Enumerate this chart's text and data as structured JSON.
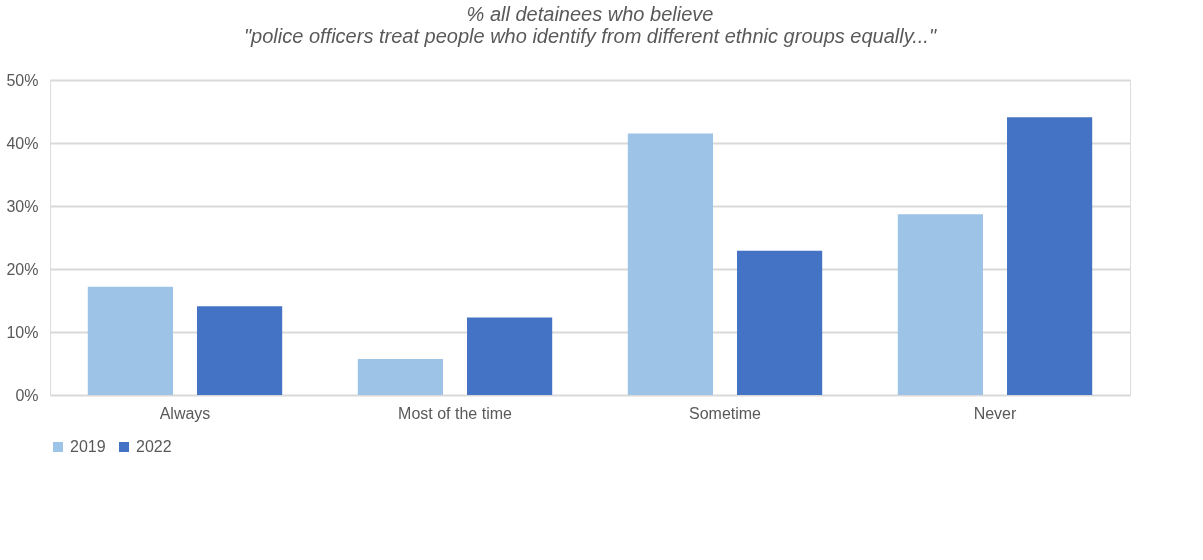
{
  "chart_data": {
    "type": "bar",
    "title": [
      "% all detainees who believe",
      "\"police officers treat people who identify from different ethnic groups equally...\""
    ],
    "categories": [
      "Always",
      "Most of the time",
      "Sometime",
      "Never"
    ],
    "series": [
      {
        "name": "2019",
        "color": "#9dc3e6",
        "values": [
          17.2,
          5.7,
          41.5,
          28.7
        ]
      },
      {
        "name": "2022",
        "color": "#4472c4",
        "values": [
          14.1,
          12.3,
          22.9,
          44.1
        ]
      }
    ],
    "ylim": [
      0,
      50
    ],
    "yticks": [
      {
        "value": 0,
        "label": "0%"
      },
      {
        "value": 10,
        "label": "10%"
      },
      {
        "value": 20,
        "label": "20%"
      },
      {
        "value": 30,
        "label": "30%"
      },
      {
        "value": 40,
        "label": "40%"
      },
      {
        "value": 50,
        "label": "50%"
      }
    ],
    "grid": "y",
    "legend": "bottom"
  }
}
